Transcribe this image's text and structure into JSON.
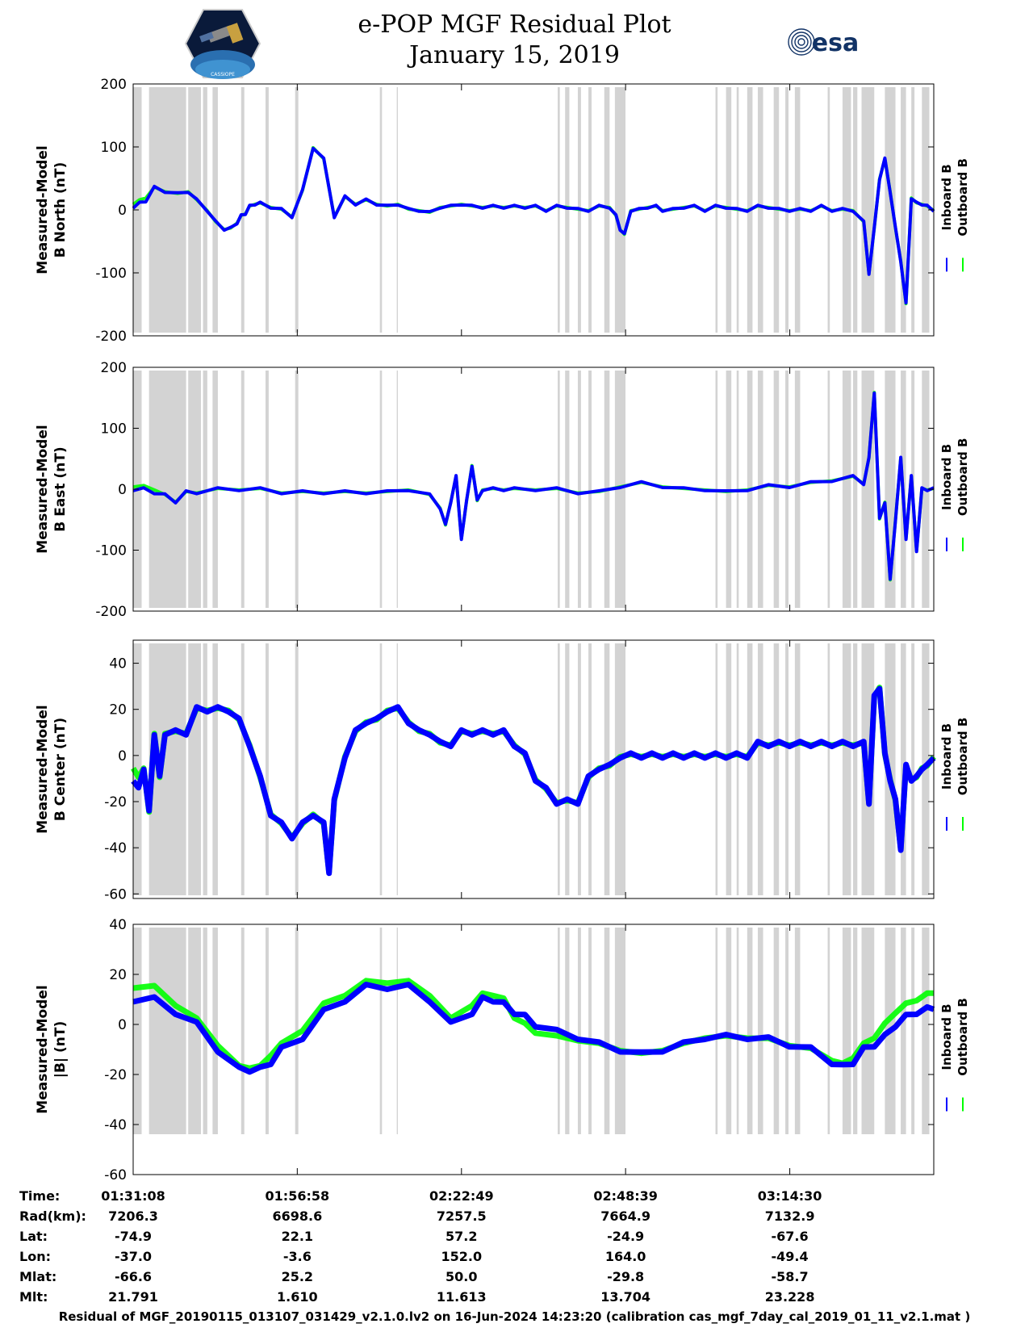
{
  "header": {
    "title_line1": "e-POP MGF Residual Plot",
    "title_line2": "January 15, 2019",
    "logo_left_text": "CASSIOPE",
    "logo_right_text": "esa"
  },
  "colors": {
    "inboard": "#0000ff",
    "outboard": "#00ff00",
    "gap_shading": "#d3d3d3"
  },
  "chart_data": [
    {
      "type": "line",
      "ylabel_line1": "Measured-Model",
      "ylabel_line2": "B North (nT)",
      "ylim": [
        -200,
        200
      ],
      "yticks": [
        200,
        100,
        0,
        -100,
        -200
      ],
      "legend": [
        "Inboard B",
        "Outboard B"
      ],
      "legend_placement": "right",
      "x": [
        0,
        60,
        120,
        200,
        300,
        420,
        520,
        600,
        700,
        780,
        860,
        920,
        980,
        1020,
        1060,
        1100,
        1150,
        1200,
        1300,
        1400,
        1500,
        1600,
        1700,
        1800,
        1900,
        2000,
        2100,
        2200,
        2300,
        2400,
        2500,
        2600,
        2700,
        2800,
        2900,
        3000,
        3100,
        3200,
        3300,
        3400,
        3500,
        3600,
        3700,
        3800,
        3900,
        4000,
        4100,
        4200,
        4300,
        4400,
        4500,
        4560,
        4600,
        4640,
        4700,
        4780,
        4860,
        4940,
        5000,
        5100,
        5200,
        5300,
        5400,
        5500,
        5600,
        5700,
        5800,
        5900,
        6000,
        6100,
        6200,
        6300,
        6400,
        6500,
        6600,
        6700,
        6800,
        6900,
        6950,
        7000,
        7050,
        7100,
        7150,
        7200,
        7250,
        7300,
        7350,
        7400,
        7450,
        7500,
        7562
      ],
      "series": [
        {
          "name": "Inboard B",
          "values": [
            5,
            10,
            15,
            35,
            30,
            25,
            30,
            15,
            0,
            -20,
            -30,
            -30,
            -20,
            -10,
            -5,
            5,
            10,
            10,
            5,
            0,
            -10,
            30,
            100,
            80,
            -10,
            20,
            10,
            15,
            10,
            5,
            10,
            0,
            0,
            -5,
            5,
            5,
            10,
            5,
            5,
            5,
            5,
            5,
            5,
            5,
            0,
            5,
            5,
            0,
            0,
            5,
            5,
            -10,
            -30,
            -40,
            0,
            0,
            5,
            5,
            0,
            0,
            5,
            5,
            0,
            5,
            5,
            0,
            0,
            5,
            5,
            0,
            0,
            0,
            0,
            5,
            0,
            0,
            0,
            -20,
            -100,
            -30,
            50,
            80,
            30,
            -30,
            -80,
            -150,
            20,
            10,
            10,
            5,
            0
          ]
        },
        {
          "name": "Outboard B",
          "values": [
            10,
            15,
            20,
            35,
            30,
            25,
            30,
            15,
            0,
            -20,
            -30,
            -30,
            -20,
            -10,
            -5,
            5,
            10,
            10,
            5,
            0,
            -10,
            30,
            100,
            80,
            -10,
            20,
            10,
            15,
            10,
            5,
            10,
            0,
            0,
            -5,
            5,
            5,
            10,
            5,
            5,
            5,
            5,
            5,
            5,
            5,
            0,
            5,
            5,
            0,
            0,
            5,
            5,
            -10,
            -30,
            -40,
            0,
            0,
            5,
            5,
            0,
            0,
            5,
            5,
            0,
            5,
            5,
            0,
            0,
            5,
            5,
            0,
            0,
            0,
            0,
            5,
            0,
            0,
            0,
            -20,
            -100,
            -30,
            50,
            80,
            30,
            -30,
            -80,
            -150,
            20,
            10,
            10,
            5,
            0
          ]
        }
      ]
    },
    {
      "type": "line",
      "ylabel_line1": "Measured-Model",
      "ylabel_line2": "B East (nT)",
      "ylim": [
        -200,
        200
      ],
      "yticks": [
        200,
        100,
        0,
        -100,
        -200
      ],
      "legend": [
        "Inboard B",
        "Outboard B"
      ],
      "legend_placement": "right",
      "x": [
        0,
        100,
        200,
        300,
        400,
        500,
        600,
        800,
        1000,
        1200,
        1400,
        1600,
        1800,
        2000,
        2200,
        2400,
        2600,
        2800,
        2900,
        2950,
        3000,
        3050,
        3100,
        3150,
        3200,
        3250,
        3300,
        3400,
        3500,
        3600,
        3800,
        4000,
        4200,
        4400,
        4600,
        4800,
        5000,
        5200,
        5400,
        5600,
        5800,
        6000,
        6200,
        6400,
        6600,
        6800,
        6900,
        6950,
        7000,
        7050,
        7100,
        7150,
        7200,
        7250,
        7300,
        7350,
        7400,
        7450,
        7500,
        7562
      ],
      "series": [
        {
          "name": "Inboard B",
          "values": [
            0,
            0,
            -5,
            -10,
            -20,
            -5,
            -5,
            0,
            0,
            0,
            -5,
            -5,
            -5,
            -5,
            -5,
            -5,
            0,
            -10,
            -30,
            -60,
            -20,
            20,
            -80,
            -20,
            40,
            -20,
            0,
            0,
            0,
            0,
            0,
            0,
            -5,
            -5,
            5,
            10,
            5,
            0,
            0,
            -5,
            0,
            5,
            5,
            10,
            15,
            20,
            10,
            50,
            160,
            -50,
            -20,
            -150,
            -50,
            50,
            -80,
            20,
            -100,
            0,
            0,
            0
          ]
        },
        {
          "name": "Outboard B",
          "values": [
            5,
            5,
            0,
            -10,
            -20,
            -5,
            -5,
            0,
            0,
            0,
            -5,
            -5,
            -5,
            -5,
            -5,
            -5,
            0,
            -10,
            -30,
            -60,
            -20,
            20,
            -80,
            -20,
            40,
            -20,
            0,
            0,
            0,
            0,
            0,
            0,
            -5,
            -5,
            5,
            10,
            5,
            0,
            0,
            -5,
            0,
            5,
            5,
            10,
            15,
            20,
            10,
            50,
            160,
            -50,
            -20,
            -150,
            -50,
            50,
            -80,
            20,
            -100,
            0,
            0,
            0
          ]
        }
      ]
    },
    {
      "type": "line",
      "ylabel_line1": "Measured-Model",
      "ylabel_line2": "B Center (nT)",
      "ylim": [
        -62,
        50
      ],
      "yticks": [
        40,
        20,
        0,
        -20,
        -40,
        -60
      ],
      "legend": [
        "Inboard B",
        "Outboard B"
      ],
      "legend_placement": "right",
      "x": [
        0,
        50,
        100,
        150,
        200,
        250,
        300,
        400,
        500,
        600,
        700,
        800,
        900,
        1000,
        1100,
        1200,
        1300,
        1400,
        1500,
        1600,
        1700,
        1800,
        1850,
        1900,
        2000,
        2100,
        2200,
        2300,
        2400,
        2500,
        2600,
        2700,
        2800,
        2900,
        3000,
        3100,
        3200,
        3300,
        3400,
        3500,
        3600,
        3700,
        3800,
        3900,
        4000,
        4100,
        4200,
        4300,
        4400,
        4500,
        4600,
        4700,
        4800,
        4900,
        5000,
        5100,
        5200,
        5300,
        5400,
        5500,
        5600,
        5700,
        5800,
        5900,
        6000,
        6100,
        6200,
        6300,
        6400,
        6500,
        6600,
        6700,
        6800,
        6900,
        6950,
        7000,
        7050,
        7100,
        7150,
        7200,
        7250,
        7300,
        7350,
        7400,
        7450,
        7500,
        7562
      ],
      "series": [
        {
          "name": "Inboard B",
          "values": [
            -10,
            -15,
            -5,
            -25,
            10,
            -10,
            10,
            10,
            10,
            20,
            20,
            20,
            20,
            15,
            5,
            -10,
            -25,
            -30,
            -35,
            -30,
            -25,
            -30,
            -50,
            -20,
            0,
            10,
            15,
            15,
            20,
            20,
            15,
            10,
            10,
            5,
            5,
            10,
            10,
            10,
            10,
            10,
            5,
            0,
            -10,
            -15,
            -20,
            -20,
            -20,
            -10,
            -5,
            -5,
            0,
            0,
            0,
            0,
            0,
            0,
            0,
            0,
            0,
            0,
            0,
            0,
            0,
            5,
            5,
            5,
            5,
            5,
            5,
            5,
            5,
            5,
            5,
            5,
            -20,
            25,
            30,
            0,
            -10,
            -20,
            -40,
            -5,
            -10,
            -10,
            -5,
            -5,
            0
          ]
        },
        {
          "name": "Outboard B",
          "values": [
            -5,
            -10,
            -5,
            -25,
            10,
            -10,
            10,
            10,
            10,
            20,
            20,
            20,
            20,
            15,
            5,
            -10,
            -25,
            -30,
            -35,
            -30,
            -25,
            -30,
            -50,
            -20,
            0,
            10,
            15,
            15,
            20,
            20,
            15,
            10,
            10,
            5,
            5,
            10,
            10,
            10,
            10,
            10,
            5,
            0,
            -10,
            -15,
            -20,
            -20,
            -20,
            -10,
            -5,
            -5,
            0,
            0,
            0,
            0,
            0,
            0,
            0,
            0,
            0,
            0,
            0,
            0,
            0,
            5,
            5,
            5,
            5,
            5,
            5,
            5,
            5,
            5,
            5,
            5,
            -20,
            25,
            30,
            0,
            -10,
            -20,
            -40,
            -5,
            -10,
            -10,
            -5,
            -5,
            0
          ]
        }
      ]
    },
    {
      "type": "line",
      "ylabel_line1": "Measured-Model",
      "ylabel_line2": "|B| (nT)",
      "ylim": [
        -60,
        40
      ],
      "yticks": [
        40,
        20,
        0,
        -20,
        -40,
        -60
      ],
      "legend": [
        "Inboard B",
        "Outboard B"
      ],
      "legend_placement": "right",
      "x": [
        0,
        200,
        400,
        600,
        800,
        1000,
        1100,
        1200,
        1300,
        1400,
        1600,
        1800,
        2000,
        2200,
        2400,
        2600,
        2800,
        3000,
        3200,
        3300,
        3400,
        3500,
        3600,
        3700,
        3800,
        4000,
        4200,
        4400,
        4600,
        4800,
        5000,
        5200,
        5400,
        5600,
        5800,
        6000,
        6200,
        6400,
        6600,
        6700,
        6800,
        6900,
        7000,
        7100,
        7200,
        7300,
        7400,
        7500,
        7562
      ],
      "series": [
        {
          "name": "Inboard B",
          "values": [
            10,
            10,
            5,
            0,
            -10,
            -18,
            -18,
            -18,
            -15,
            -10,
            -5,
            5,
            10,
            15,
            15,
            15,
            10,
            0,
            5,
            10,
            10,
            8,
            5,
            3,
            0,
            -3,
            -5,
            -8,
            -10,
            -12,
            -10,
            -8,
            -5,
            -5,
            -5,
            -6,
            -8,
            -10,
            -15,
            -17,
            -15,
            -10,
            -8,
            -5,
            0,
            3,
            5,
            6,
            7
          ]
        },
        {
          "name": "Outboard B",
          "values": [
            15,
            15,
            8,
            2,
            -8,
            -17,
            -17,
            -17,
            -12,
            -8,
            -2,
            8,
            12,
            17,
            17,
            17,
            12,
            2,
            8,
            12,
            12,
            10,
            3,
            0,
            -3,
            -5,
            -6,
            -8,
            -10,
            -12,
            -10,
            -8,
            -5,
            -5,
            -5,
            -6,
            -8,
            -10,
            -14,
            -16,
            -13,
            -8,
            -5,
            0,
            5,
            8,
            10,
            12,
            13
          ]
        }
      ]
    }
  ],
  "x_axis": {
    "x_range_seconds": [
      0,
      7562
    ],
    "tick_positions_seconds": [
      0,
      1550,
      3101,
      4651,
      6202
    ]
  },
  "gap_intervals_seconds": [
    [
      0,
      80
    ],
    [
      150,
      500
    ],
    [
      520,
      640
    ],
    [
      660,
      700
    ],
    [
      750,
      800
    ],
    [
      1020,
      1050
    ],
    [
      1250,
      1280
    ],
    [
      1530,
      1560
    ],
    [
      2330,
      2350
    ],
    [
      2490,
      2500
    ],
    [
      4010,
      4030
    ],
    [
      4080,
      4120
    ],
    [
      4200,
      4230
    ],
    [
      4300,
      4330
    ],
    [
      4450,
      4500
    ],
    [
      4550,
      4650
    ],
    [
      5500,
      5520
    ],
    [
      5600,
      5650
    ],
    [
      5700,
      5720
    ],
    [
      5800,
      5850
    ],
    [
      5900,
      5950
    ],
    [
      6050,
      6100
    ],
    [
      6160,
      6190
    ],
    [
      6250,
      6300
    ],
    [
      6560,
      6580
    ],
    [
      6700,
      6780
    ],
    [
      6800,
      6840
    ],
    [
      6880,
      7000
    ],
    [
      7100,
      7200
    ],
    [
      7250,
      7300
    ],
    [
      7350,
      7380
    ],
    [
      7450,
      7520
    ]
  ],
  "table": {
    "rows": [
      {
        "label": "Time:",
        "values": [
          "01:31:08",
          "01:56:58",
          "02:22:49",
          "02:48:39",
          "03:14:30"
        ]
      },
      {
        "label": "Rad(km):",
        "values": [
          "7206.3",
          "6698.6",
          "7257.5",
          "7664.9",
          "7132.9"
        ]
      },
      {
        "label": "Lat:",
        "values": [
          "-74.9",
          "22.1",
          "57.2",
          "-24.9",
          "-67.6"
        ]
      },
      {
        "label": "Lon:",
        "values": [
          "-37.0",
          "-3.6",
          "152.0",
          "164.0",
          "-49.4"
        ]
      },
      {
        "label": "Mlat:",
        "values": [
          "-66.6",
          "25.2",
          "50.0",
          "-29.8",
          "-58.7"
        ]
      },
      {
        "label": "Mlt:",
        "values": [
          "21.791",
          "1.610",
          "11.613",
          "13.704",
          "23.228"
        ]
      }
    ]
  },
  "footer": "Residual of MGF_20190115_013107_031429_v2.1.0.lv2 on 16-Jun-2024 14:23:20 (calibration cas_mgf_7day_cal_2019_01_11_v2.1.mat )"
}
